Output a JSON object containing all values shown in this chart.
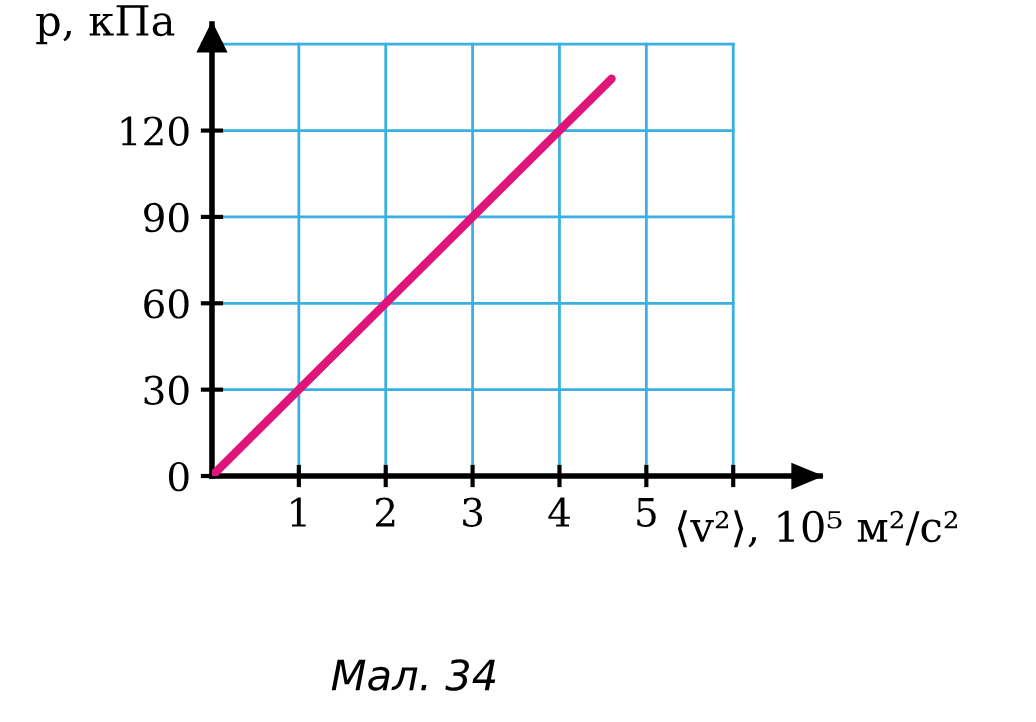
{
  "chart_data": {
    "type": "line",
    "ylabel": "p, кПа",
    "xlabel": "⟨v²⟩, 10⁵ м²/с²",
    "annotations": [
      "Мал. 34"
    ],
    "x": [
      0,
      4.6
    ],
    "series": [
      {
        "color": "#e0157a",
        "values": [
          0,
          138
        ]
      }
    ],
    "xlim": [
      0,
      7
    ],
    "ylim": [
      0,
      157
    ],
    "xticks": [
      1,
      2,
      3,
      4,
      5,
      {
        "value": 6,
        "label": null
      }
    ],
    "yticks": [
      0,
      30,
      60,
      90,
      120,
      {
        "value": 150,
        "label": null
      }
    ],
    "grid": true
  }
}
